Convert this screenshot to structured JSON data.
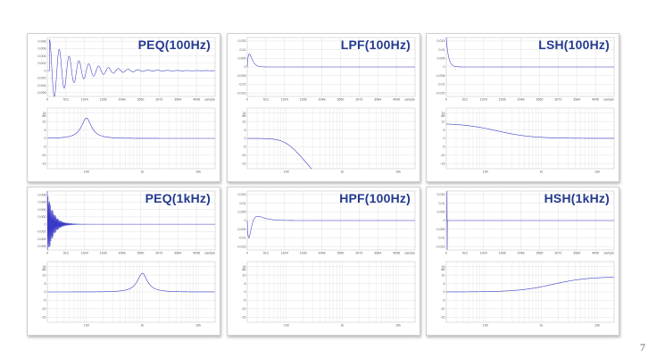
{
  "page_number": "7",
  "colors": {
    "curve": "#3a3ac8",
    "grid": "#d6d6d6",
    "frame": "#b0b0b0",
    "title": "#233a8e",
    "tick": "#555555"
  },
  "chart_data": [
    {
      "id": "peq100",
      "title": "PEQ(100Hz)",
      "impulse": {
        "type": "line",
        "xlabel": "sample",
        "xticks": [
          "0",
          "512",
          "1024",
          "1536",
          "2048",
          "2560",
          "3072",
          "3584",
          "4096"
        ],
        "yticks": [
          "0.008",
          "0.006",
          "0.004",
          "0.002",
          "0",
          "-0.002",
          "-0.004",
          "-0.006"
        ],
        "xlim": [
          0,
          4608
        ],
        "ylim": [
          -0.007,
          0.009
        ],
        "model": {
          "kind": "ring",
          "amp": 0.0085,
          "decay": 700,
          "period": 270,
          "start": 60
        }
      },
      "response": {
        "type": "line",
        "ylabel": "dB",
        "xticks": [
          "100",
          "1k",
          "10k"
        ],
        "yticks": [
          "15",
          "10",
          "5",
          "0",
          "-5",
          "-10",
          "-15"
        ],
        "ylim": [
          -18,
          18
        ],
        "model": {
          "kind": "peak",
          "gain": 12,
          "fc": 100,
          "q": 2
        }
      }
    },
    {
      "id": "lpf100",
      "title": "LPF(100Hz)",
      "impulse": {
        "type": "line",
        "xlabel": "sample",
        "xticks": [
          "0",
          "512",
          "1024",
          "1536",
          "2048",
          "2560",
          "3072",
          "3584",
          "4096"
        ],
        "yticks": [
          "0.015",
          "0.01",
          "0.005",
          "0",
          "-0.005",
          "-0.01",
          "-0.015"
        ],
        "xlim": [
          0,
          4608
        ],
        "ylim": [
          -0.017,
          0.017
        ],
        "model": {
          "kind": "bump",
          "amp": 0.0075,
          "tau": 55,
          "start": 0
        }
      },
      "response": {
        "type": "line",
        "ylabel": "dB",
        "xticks": [
          "100",
          "1k",
          "10k"
        ],
        "yticks": [
          "15",
          "10",
          "5",
          "0",
          "-5",
          "-10",
          "-15"
        ],
        "ylim": [
          -18,
          18
        ],
        "model": {
          "kind": "lpf",
          "fc": 100,
          "order": 2
        }
      }
    },
    {
      "id": "lsh100",
      "title": "LSH(100Hz)",
      "impulse": {
        "type": "line",
        "xlabel": "sample",
        "xticks": [
          "0",
          "512",
          "1024",
          "1536",
          "2048",
          "2560",
          "3072",
          "3584",
          "4096"
        ],
        "yticks": [
          "0.015",
          "0.01",
          "0.005",
          "0",
          "-0.005",
          "-0.01",
          "-0.015"
        ],
        "xlim": [
          0,
          4608
        ],
        "ylim": [
          -0.017,
          0.017
        ],
        "model": {
          "kind": "decay",
          "amp": 0.017,
          "tau": 60,
          "start": 0
        }
      },
      "response": {
        "type": "line",
        "ylabel": "dB",
        "xticks": [
          "100",
          "1k",
          "10k"
        ],
        "yticks": [
          "15",
          "10",
          "5",
          "0",
          "-5",
          "-10",
          "-15"
        ],
        "ylim": [
          -18,
          18
        ],
        "model": {
          "kind": "lowshelf",
          "gain": 9,
          "fc": 100
        }
      }
    },
    {
      "id": "peq1k",
      "title": "PEQ(1kHz)",
      "impulse": {
        "type": "line",
        "xlabel": "sample",
        "xticks": [
          "0",
          "512",
          "1024",
          "1536",
          "2048",
          "2560",
          "3072",
          "3584",
          "4096"
        ],
        "yticks": [
          "0.008",
          "0.006",
          "0.004",
          "0.002",
          "0",
          "-0.002",
          "-0.004",
          "-0.006"
        ],
        "xlim": [
          0,
          4608
        ],
        "ylim": [
          -0.007,
          0.009
        ],
        "model": {
          "kind": "ring",
          "amp": 0.0095,
          "decay": 160,
          "period": 22,
          "start": 0
        }
      },
      "response": {
        "type": "line",
        "ylabel": "dB",
        "xticks": [
          "100",
          "1k",
          "10k"
        ],
        "yticks": [
          "15",
          "10",
          "5",
          "0",
          "-5",
          "-10",
          "-15"
        ],
        "ylim": [
          -18,
          18
        ],
        "model": {
          "kind": "peak",
          "gain": 11,
          "fc": 1000,
          "q": 2
        }
      }
    },
    {
      "id": "hpf100",
      "title": "HPF(100Hz)",
      "impulse": {
        "type": "line",
        "xlabel": "sample",
        "xticks": [
          "0",
          "512",
          "1024",
          "1536",
          "2048",
          "2560",
          "3072",
          "3584",
          "4096"
        ],
        "yticks": [
          "0.015",
          "0.01",
          "0.005",
          "0",
          "-0.005",
          "-0.01",
          "-0.015"
        ],
        "xlim": [
          0,
          4608
        ],
        "ylim": [
          -0.017,
          0.017
        ],
        "model": {
          "kind": "hpimp",
          "amp": 0.0125,
          "tau": 50,
          "start": 0
        }
      },
      "response": {
        "type": "line",
        "ylabel": "dB",
        "xticks": [
          "100",
          "1k",
          "10k"
        ],
        "yticks": [
          "15",
          "10",
          "5",
          "0",
          "-5",
          "-10",
          "-15"
        ],
        "ylim": [
          -18,
          18
        ],
        "model": {
          "kind": "hpf",
          "fc": 100,
          "order": 2
        }
      }
    },
    {
      "id": "hsh1k",
      "title": "HSH(1kHz)",
      "impulse": {
        "type": "line",
        "xlabel": "sample",
        "xticks": [
          "0",
          "512",
          "1024",
          "1536",
          "2048",
          "2560",
          "3072",
          "3584",
          "4096"
        ],
        "yticks": [
          "0.015",
          "0.01",
          "0.005",
          "0",
          "-0.005",
          "-0.01",
          "-0.015"
        ],
        "xlim": [
          0,
          4608
        ],
        "ylim": [
          -0.017,
          0.017
        ],
        "model": {
          "kind": "spike",
          "amp": 0.017,
          "low": -0.017,
          "start": 20
        }
      },
      "response": {
        "type": "line",
        "ylabel": "dB",
        "xticks": [
          "100",
          "1k",
          "10k"
        ],
        "yticks": [
          "15",
          "10",
          "5",
          "0",
          "-5",
          "-10",
          "-15"
        ],
        "ylim": [
          -18,
          18
        ],
        "model": {
          "kind": "highshelf",
          "gain": 9,
          "fc": 1000
        }
      }
    }
  ]
}
